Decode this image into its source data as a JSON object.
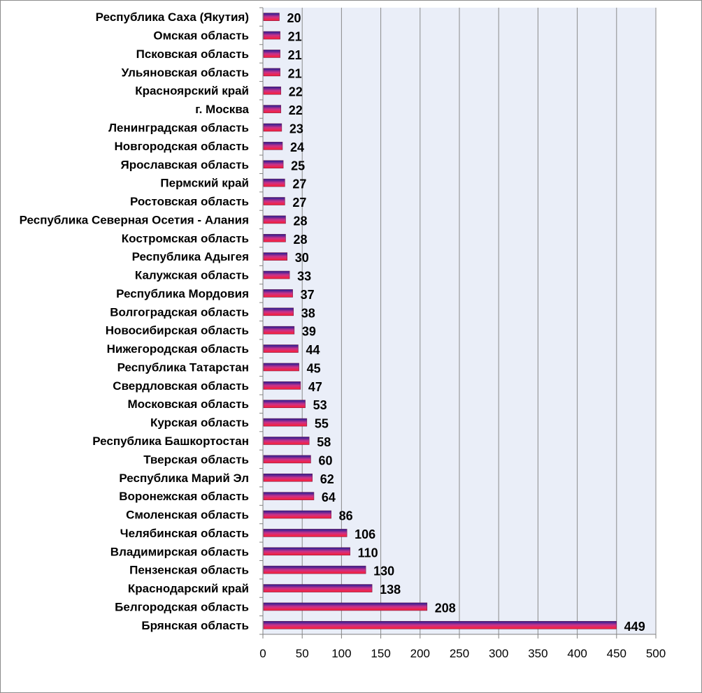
{
  "chart_data": {
    "type": "bar",
    "orientation": "horizontal",
    "categories": [
      "Республика Саха (Якутия)",
      "Омская область",
      "Псковская область",
      "Ульяновская область",
      "Красноярский край",
      "г. Москва",
      "Ленинградская область",
      "Новгородская  область",
      "Ярославская область",
      "Пермский край",
      "Ростовская область",
      "Республика Северная Осетия - Алания",
      "Костромская область",
      "Республика Адыгея",
      "Калужская область",
      "Республика Мордовия",
      "Волгоградская  область",
      "Новосибирская область",
      "Нижегородская  область",
      "Республика Татарстан",
      "Свердловская область",
      "Московская  область",
      "Курская область",
      "Республика Башкортостан",
      "Тверская область",
      "Республика Марий Эл",
      "Воронежская область",
      "Смоленская область",
      "Челябинская область",
      "Владимирская область",
      "Пензенская область",
      "Краснодарский край",
      "Белгородская область",
      "Брянская область"
    ],
    "values": [
      20,
      21,
      21,
      21,
      22,
      22,
      23,
      24,
      25,
      27,
      27,
      28,
      28,
      30,
      33,
      37,
      38,
      39,
      44,
      45,
      47,
      53,
      55,
      58,
      60,
      62,
      64,
      86,
      106,
      110,
      130,
      138,
      208,
      449
    ],
    "xlim": [
      0,
      500
    ],
    "xticks": [
      0,
      50,
      100,
      150,
      200,
      250,
      300,
      350,
      400,
      450,
      500
    ],
    "grid": "vertical",
    "legend": "none",
    "colors": {
      "bar_top": "#1e1e96",
      "bar_mid": "#c8328c",
      "bar_bottom": "#ff1e32",
      "plot_bg": "#eaeef8",
      "grid": "#8a8a8a"
    }
  }
}
